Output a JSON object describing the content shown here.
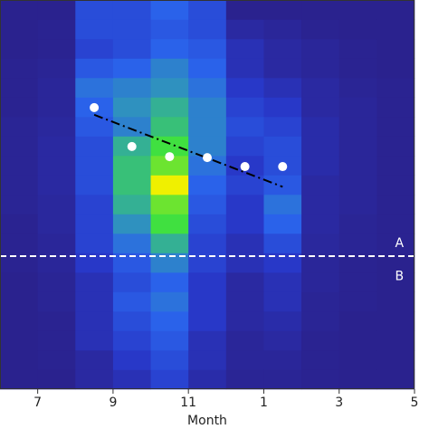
{
  "chart_data": {
    "type": "heatmap",
    "x_label": "Month",
    "xlim": [
      6,
      17
    ],
    "ylim": [
      0,
      20
    ],
    "xticks": [
      7,
      9,
      11,
      {
        "value": 13,
        "label": "1"
      },
      {
        "value": 15,
        "label": "3"
      },
      {
        "value": 17,
        "label": "5"
      }
    ],
    "xbins": [
      6,
      7,
      8,
      9,
      10,
      11,
      12,
      13,
      14,
      15,
      16,
      17
    ],
    "ybins": [
      0,
      1,
      2,
      3,
      4,
      5,
      6,
      7,
      8,
      9,
      10,
      11,
      12,
      13,
      14,
      15,
      16,
      17,
      18,
      19,
      20
    ],
    "zlim": [
      0,
      10
    ],
    "colorscale": [
      "#2b1a7a",
      "#2838c8",
      "#2a62ea",
      "#30a0b0",
      "#40e040",
      "#f0f000"
    ],
    "z": [
      [
        0.5,
        0.5,
        1,
        1.5,
        2.5,
        1.2,
        0.7,
        0.7,
        0.6,
        0.5,
        0.5
      ],
      [
        0.5,
        0.6,
        1,
        2,
        3,
        1.5,
        0.8,
        0.8,
        0.6,
        0.5,
        0.5
      ],
      [
        0.5,
        0.6,
        1.5,
        2.5,
        3.5,
        1.5,
        0.8,
        1,
        0.6,
        0.5,
        0.5
      ],
      [
        0.5,
        0.6,
        1.5,
        3,
        4,
        2,
        1,
        1.2,
        0.7,
        0.5,
        0.5
      ],
      [
        0.5,
        0.7,
        1.5,
        3.5,
        4.5,
        2,
        1,
        1.5,
        0.7,
        0.6,
        0.5
      ],
      [
        0.5,
        0.7,
        1.5,
        3,
        4,
        2,
        1,
        1.5,
        0.8,
        0.6,
        0.5
      ],
      [
        0.6,
        0.8,
        2,
        3.5,
        5,
        2.5,
        1.5,
        2,
        0.8,
        0.6,
        0.5
      ],
      [
        0.6,
        0.8,
        2.5,
        4.5,
        6.5,
        2.5,
        1.5,
        3,
        0.9,
        0.7,
        0.6
      ],
      [
        0.6,
        0.9,
        2.5,
        5.5,
        8,
        3,
        2,
        4,
        1,
        0.7,
        0.6
      ],
      [
        0.7,
        0.9,
        2.5,
        6.5,
        8.5,
        3.5,
        2,
        4.5,
        1,
        0.8,
        0.6
      ],
      [
        0.7,
        1,
        3,
        7,
        10,
        4,
        2.5,
        3.5,
        1,
        0.8,
        0.6
      ],
      [
        0.7,
        1,
        3,
        7,
        8.5,
        4.5,
        2,
        3,
        1.2,
        0.8,
        0.6
      ],
      [
        0.7,
        1,
        3,
        6.5,
        8,
        5,
        2.5,
        3,
        1.2,
        0.8,
        0.6
      ],
      [
        0.7,
        0.9,
        3.5,
        5,
        7,
        5,
        3,
        2.5,
        1.2,
        0.8,
        0.6
      ],
      [
        0.6,
        0.8,
        4,
        5.5,
        6.5,
        5,
        2.5,
        2,
        1,
        0.8,
        0.6
      ],
      [
        0.6,
        0.8,
        4.5,
        5,
        5.5,
        4.5,
        2,
        1.5,
        1,
        0.7,
        0.6
      ],
      [
        0.6,
        0.7,
        3.5,
        4,
        5,
        4,
        1.5,
        1,
        0.8,
        0.6,
        0.5
      ],
      [
        0.5,
        0.6,
        2.5,
        3,
        4,
        3.5,
        1.5,
        1,
        0.8,
        0.6,
        0.5
      ],
      [
        0.5,
        0.6,
        3,
        3,
        3.5,
        3,
        1,
        0.8,
        0.6,
        0.5,
        0.5
      ],
      [
        0.5,
        0.5,
        3,
        3,
        4,
        3,
        0.5,
        0.5,
        0.5,
        0.5,
        0.5
      ]
    ],
    "points": {
      "x": [
        8.5,
        9.5,
        10.5,
        11.5,
        12.5,
        13.5
      ],
      "y": [
        14.47,
        12.47,
        11.95,
        11.9,
        11.44,
        11.44
      ],
      "color": "#ffffff"
    },
    "trend": {
      "x": [
        8.5,
        13.5
      ],
      "y": [
        14.1,
        10.4
      ],
      "color": "#000000"
    },
    "hline": {
      "y": 6.84,
      "color": "#ffffff"
    },
    "annotations": [
      {
        "text": "A",
        "x": 16.6,
        "y": 7.5
      },
      {
        "text": "B",
        "x": 16.6,
        "y": 5.8
      }
    ]
  }
}
